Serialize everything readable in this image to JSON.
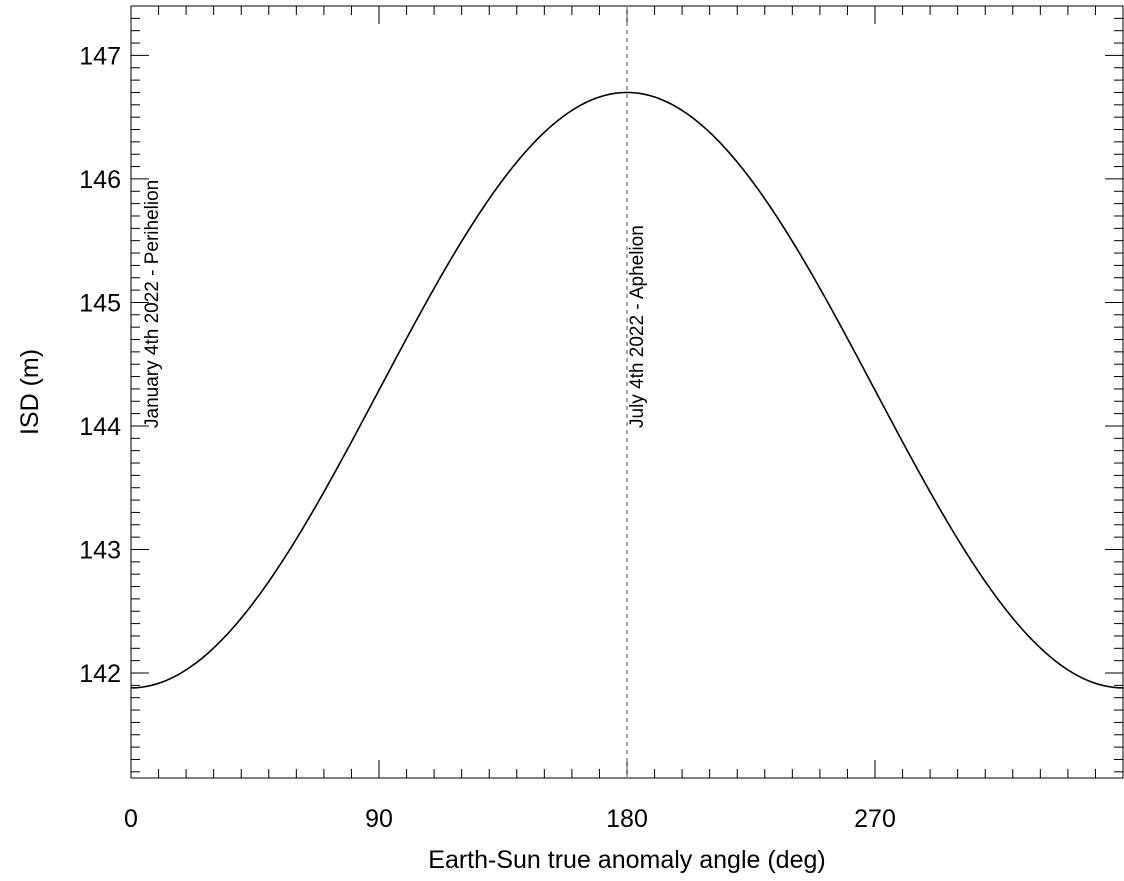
{
  "chart_data": {
    "type": "line",
    "title": "",
    "xlabel": "Earth-Sun true anomaly angle (deg)",
    "ylabel": "ISD (m)",
    "xlim": [
      0,
      360
    ],
    "ylim": [
      141.15,
      147.4
    ],
    "x_ticks": [
      0,
      90,
      180,
      270
    ],
    "x_tick_labels": [
      "0",
      "90",
      "180",
      "270"
    ],
    "y_ticks": [
      142,
      143,
      144,
      145,
      146,
      147
    ],
    "y_tick_labels": [
      "142",
      "143",
      "144",
      "145",
      "146",
      "147"
    ],
    "grid": false,
    "legend": "none",
    "series": [
      {
        "x": [
          0,
          15,
          30,
          45,
          60,
          75,
          90,
          105,
          120,
          135,
          150,
          165,
          180,
          195,
          210,
          225,
          240,
          255,
          270,
          285,
          300,
          315,
          330,
          345,
          360
        ],
        "y": [
          141.88,
          141.99,
          142.27,
          142.7,
          143.25,
          143.85,
          144.45,
          145.03,
          145.56,
          146.01,
          146.38,
          146.62,
          146.7,
          146.62,
          146.38,
          146.01,
          145.56,
          145.03,
          144.45,
          143.85,
          143.25,
          142.7,
          142.27,
          141.99,
          141.88
        ],
        "color": "#000000"
      }
    ],
    "vlines": [
      {
        "x": 180,
        "style": "dashed",
        "color": "#888888"
      }
    ],
    "annotations": [
      {
        "text": "January 4th 2022 - Perihelion",
        "x": 0
      },
      {
        "text": "July 4th 2022 - Aphelion",
        "x": 180
      }
    ]
  }
}
